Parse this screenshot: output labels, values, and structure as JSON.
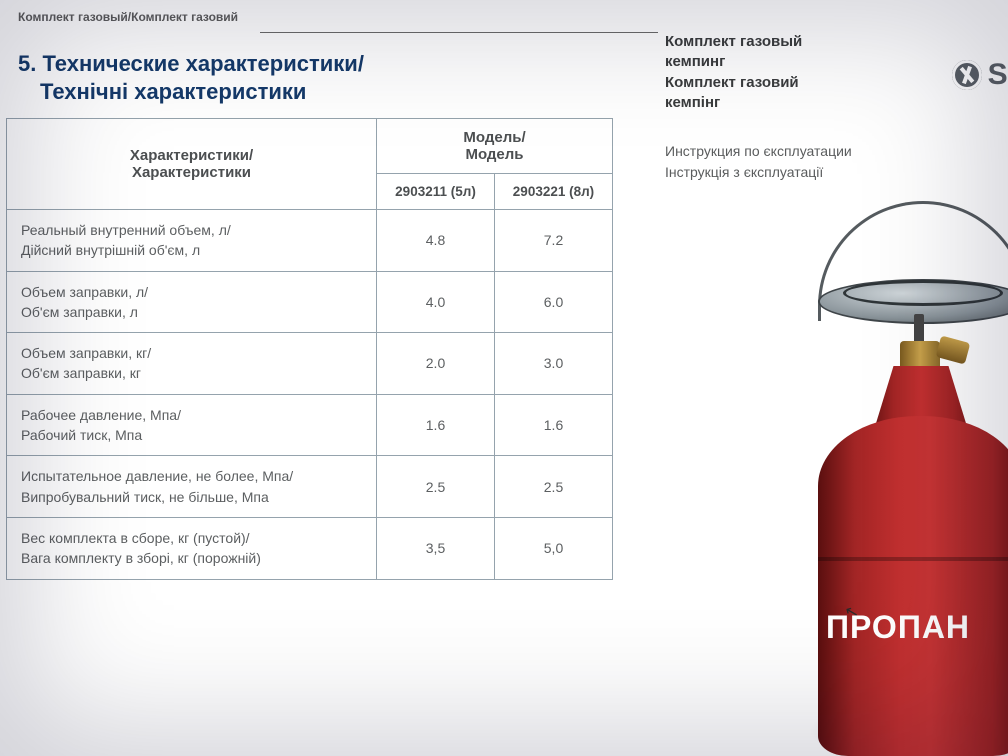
{
  "breadcrumb": "Комплект газовый/Комплект газовий",
  "section_title_line1": "5. Технические характеристики/",
  "section_title_line2": "Технічні характеристики",
  "table": {
    "header_characteristics": "Характеристики/\nХарактеристики",
    "header_model": "Модель/\nМодель",
    "model_a": "2903211 (5л)",
    "model_b": "2903221 (8л)",
    "rows": [
      {
        "label": "Реальный внутренний объем, л/\nДійсний внутрішній об'єм, л",
        "a": "4.8",
        "b": "7.2"
      },
      {
        "label": "Объем заправки, л/\nОб'єм заправки, л",
        "a": "4.0",
        "b": "6.0"
      },
      {
        "label": "Объем заправки, кг/\nОб'єм заправки, кг",
        "a": "2.0",
        "b": "3.0"
      },
      {
        "label": "Рабочее давление, Мпа/\nРабочий тиск, Мпа",
        "a": "1.6",
        "b": "1.6"
      },
      {
        "label": "Испытательное давление, не более, Мпа/\nВипробувальний тиск, не більше, Мпа",
        "a": "2.5",
        "b": "2.5"
      },
      {
        "label": "Вес комплекта в сборе, кг (пустой)/\nВага комплекту в зборі, кг (порожній)",
        "a": "3,5",
        "b": "5,0"
      }
    ]
  },
  "right": {
    "title_ru1": "Комплект газовый",
    "title_ru2": "кемпинг",
    "title_ua1": "Комплект газовий",
    "title_ua2": "кемпінг",
    "sub_ru": "Инструкция по єксплуатации",
    "sub_ua": "Інструкція з єксплуатації"
  },
  "cylinder": {
    "label": "ПРОПАН",
    "body_color": "#b52a2a",
    "text_color": "#ffffff"
  },
  "logo_text": "SI",
  "colors": {
    "title": "#153a6a",
    "border": "#95a3ad",
    "text": "#5c5f61",
    "background": "#ffffff"
  }
}
